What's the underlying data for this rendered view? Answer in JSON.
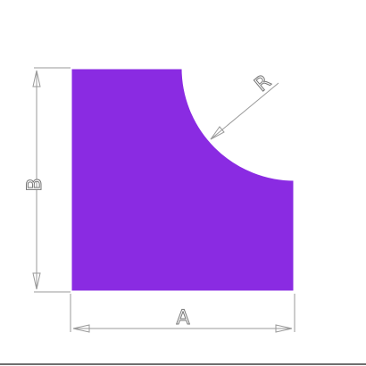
{
  "diagram": {
    "shape_fill": "#8a2be2",
    "shape_outline": "#ffffff",
    "labels": {
      "width": "A",
      "height": "B",
      "radius": "R"
    }
  }
}
